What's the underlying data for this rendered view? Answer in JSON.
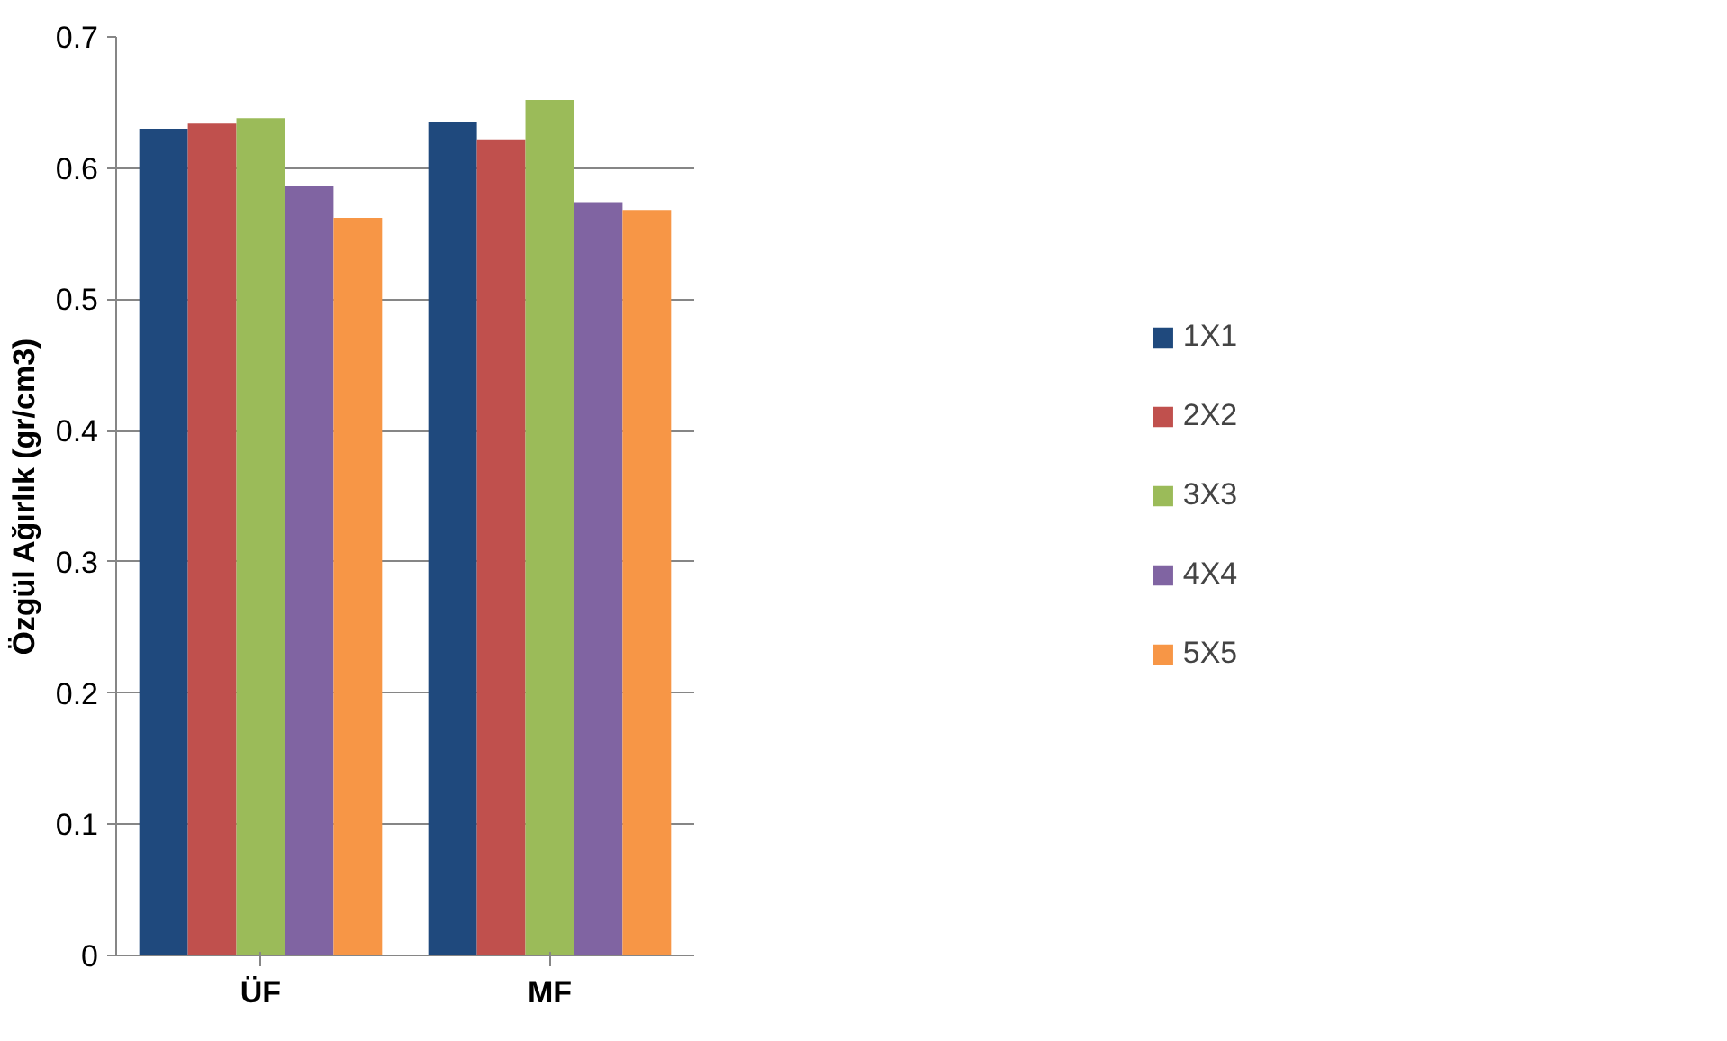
{
  "chart_data": {
    "type": "bar",
    "ylabel": "Özgül Ağırlık (gr/cm3)",
    "categories": [
      "ÜF",
      "MF"
    ],
    "series": [
      {
        "name": "1X1",
        "color": "#1f497d",
        "values": [
          0.63,
          0.635
        ]
      },
      {
        "name": "2X2",
        "color": "#c0504d",
        "values": [
          0.634,
          0.622
        ]
      },
      {
        "name": "3X3",
        "color": "#9bbb59",
        "values": [
          0.638,
          0.652
        ]
      },
      {
        "name": "4X4",
        "color": "#8064a2",
        "values": [
          0.586,
          0.574
        ]
      },
      {
        "name": "5X5",
        "color": "#f79646",
        "values": [
          0.562,
          0.568
        ]
      }
    ],
    "ylim": [
      0,
      0.7
    ],
    "yticks": [
      0,
      0.1,
      0.2,
      0.3,
      0.4,
      0.5,
      0.6,
      0.7
    ],
    "grid": "y",
    "legend": "right"
  }
}
